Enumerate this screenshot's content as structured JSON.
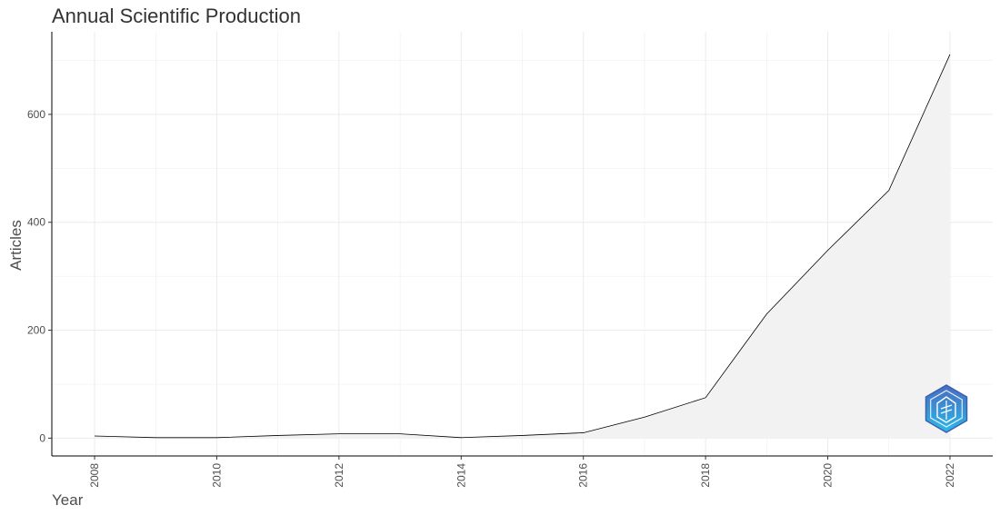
{
  "chart_data": {
    "type": "area",
    "title": "Annual Scientific Production",
    "xlabel": "Year",
    "ylabel": "Articles",
    "x": [
      2008,
      2009,
      2010,
      2011,
      2012,
      2013,
      2014,
      2015,
      2016,
      2017,
      2018,
      2019,
      2020,
      2021,
      2022
    ],
    "values": [
      4,
      1,
      1,
      5,
      8,
      8,
      1,
      5,
      10,
      39,
      75,
      230,
      348,
      459,
      711
    ],
    "xlim": [
      2007.3,
      2022.7
    ],
    "ylim": [
      -33,
      753
    ],
    "x_ticks": [
      2008,
      2010,
      2012,
      2014,
      2016,
      2018,
      2020,
      2022
    ],
    "y_ticks": [
      0,
      200,
      400,
      600
    ],
    "grid": true,
    "legend": "none",
    "line_color": "#000000",
    "fill_color": "#f2f2f2",
    "grid_color": "#ebebeb",
    "logo_icon": "bibliometrix-hexagon-logo"
  }
}
